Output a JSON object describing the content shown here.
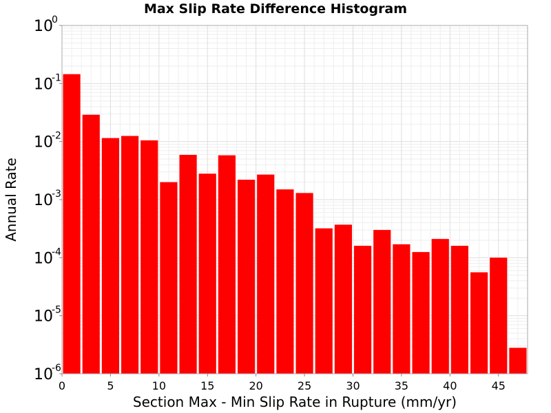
{
  "chart_data": {
    "type": "bar",
    "title": "Max Slip Rate Difference Histogram",
    "xlabel": "Section Max - Min Slip Rate in Rupture (mm/yr)",
    "ylabel": "Annual Rate",
    "yscale": "log",
    "xlim": [
      0,
      48
    ],
    "ylim": [
      1e-06,
      1
    ],
    "bin_width": 2,
    "x_ticks": [
      0,
      5,
      10,
      15,
      20,
      25,
      30,
      35,
      40,
      45
    ],
    "y_ticks": [
      {
        "base": "10",
        "exp": "0",
        "value": 1
      },
      {
        "base": "10",
        "exp": "-1",
        "value": 0.1
      },
      {
        "base": "10",
        "exp": "-2",
        "value": 0.01
      },
      {
        "base": "10",
        "exp": "-3",
        "value": 0.001
      },
      {
        "base": "10",
        "exp": "-4",
        "value": 0.0001
      },
      {
        "base": "10",
        "exp": "-5",
        "value": 1e-05
      },
      {
        "base": "10",
        "exp": "-6",
        "value": 1e-06
      }
    ],
    "grid": true,
    "bar_color": "#ff0000",
    "x": [
      1,
      3,
      5,
      7,
      9,
      11,
      13,
      15,
      17,
      19,
      21,
      23,
      25,
      27,
      29,
      31,
      33,
      35,
      37,
      39,
      41,
      43,
      45,
      47
    ],
    "values": [
      0.145,
      0.029,
      0.0115,
      0.0125,
      0.0105,
      0.002,
      0.0059,
      0.0028,
      0.0058,
      0.0022,
      0.0027,
      0.0015,
      0.0013,
      0.00032,
      0.00037,
      0.00016,
      0.0003,
      0.00017,
      0.000125,
      0.00021,
      0.00016,
      5.6e-05,
      0.0001,
      2.8e-06
    ]
  }
}
